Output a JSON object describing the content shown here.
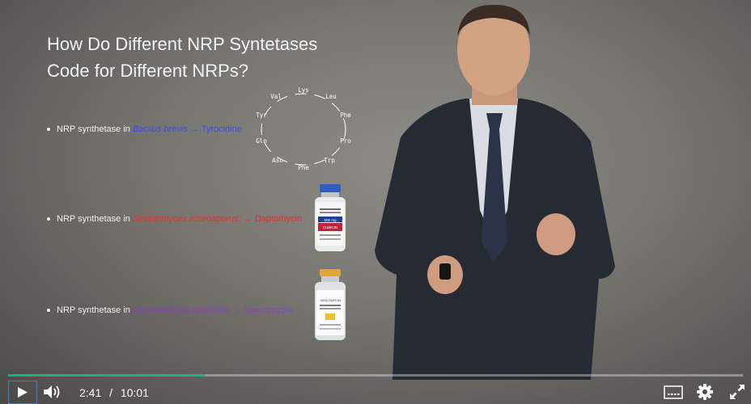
{
  "slide": {
    "title_line1": "How Do Different NRP Syntetases",
    "title_line2": "Code for Different NRPs?",
    "bullets": [
      {
        "prefix": "NRP synthetase in ",
        "organism": "Bacilus brevis",
        "suffix": " → Tyrocidine",
        "color": "#3b4cf0"
      },
      {
        "prefix": "NRP synthetase in ",
        "organism": "Streptomyces roseosporus",
        "suffix": ": → Daptomycin",
        "color": "#e0322e"
      },
      {
        "prefix": "NRP synthetase in ",
        "organism": "Amycolatopsis orientalis",
        "suffix": ": → Vancomycin",
        "color": "#8a3fbf"
      }
    ],
    "ring_residues": [
      "Lys",
      "Leu",
      "Phe",
      "Pro",
      "Trp",
      "Phe",
      "Asn",
      "Gln",
      "Tyr",
      "Val"
    ],
    "vial1_label": {
      "line1": "500 mg",
      "line2": "CUBICIN"
    },
    "vial2_label": {
      "line1": "VANCOMYCIN"
    }
  },
  "player": {
    "current_time": "2:41",
    "separator": "/",
    "duration": "10:01",
    "progress_fraction": 0.268,
    "accent_color": "#19b37b",
    "icons": [
      "play-icon",
      "volume-icon",
      "captions-icon",
      "gear-icon",
      "fullscreen-icon"
    ]
  }
}
